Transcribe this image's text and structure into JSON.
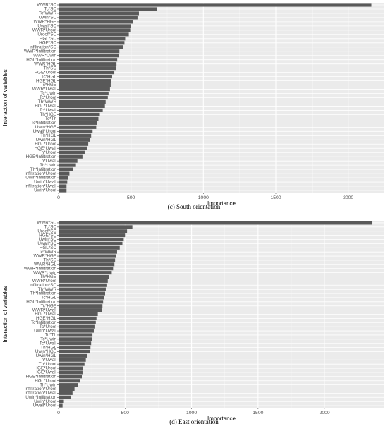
{
  "chart_data": [
    {
      "type": "bar",
      "orientation": "horizontal",
      "caption": "(c) South orientation",
      "xlabel": "Importance",
      "ylabel": "Interaction of variables",
      "xlim": [
        0,
        2250
      ],
      "xticks": [
        0,
        500,
        1000,
        1500,
        2000
      ],
      "grid": true,
      "categories": [
        "WWR*SC",
        "Tc*SC",
        "Tc*WWR",
        "Uwin*SC",
        "WWR*HGE",
        "Uwall*SC",
        "WWR*Uroof",
        "Uroof*SC",
        "HGL*SC",
        "HGE*SC",
        "Infiltration*SC",
        "WWR*Infiltration",
        "WWR*Uwin",
        "HGL*Infiltration",
        "WWR*HGL",
        "Th*SC",
        "HGE*Uroof",
        "Tc*HGL",
        "HGE*HGL",
        "Tc*HGE",
        "WWR*Uwall",
        "Tc*Uwin",
        "Tc*Uroof",
        "Th*WWR",
        "HGL*Uwall",
        "Tc*Uwall",
        "Th*HGE",
        "Tc*Th",
        "Tc*Infiltration",
        "Uwin*HGE",
        "Uwall*Uroof",
        "Th*HGL",
        "Uwin*HGL",
        "HGL*Uroof",
        "HGE*Uwall",
        "Th*Uroof",
        "HGE*Infiltration",
        "Th*Uwall",
        "Th*Uwin",
        "Th*Infiltration",
        "Infiltration*Uroof",
        "Uwin*Infiltration",
        "Uwin*Uwall",
        "Infiltration*Uwall",
        "Uwin*Uroof"
      ],
      "values": [
        2160,
        680,
        555,
        545,
        515,
        500,
        495,
        485,
        460,
        455,
        445,
        420,
        415,
        405,
        400,
        395,
        385,
        370,
        365,
        360,
        355,
        345,
        340,
        325,
        320,
        305,
        285,
        275,
        265,
        260,
        235,
        225,
        215,
        205,
        195,
        180,
        165,
        130,
        120,
        100,
        75,
        65,
        60,
        55,
        55
      ]
    },
    {
      "type": "bar",
      "orientation": "horizontal",
      "caption": "(d) East orientation",
      "xlabel": "Importance",
      "ylabel": "Interaction of variables",
      "xlim": [
        0,
        2450
      ],
      "xticks": [
        0,
        500,
        1000,
        1500,
        2000
      ],
      "grid": true,
      "categories": [
        "WWR*SC",
        "Tc*SC",
        "Uroof*SC",
        "HGE*SC",
        "Uwin*SC",
        "Uwall*SC",
        "HGL*SC",
        "Tc*WWR",
        "WWR*HGE",
        "Th*SC",
        "WWR*HGL",
        "WWR*Infiltration",
        "WWR*Uwin",
        "Th*HGE",
        "WWR*Uroof",
        "Infiltration*SC",
        "Th*WWR",
        "Th*Infiltration",
        "Tc*HGL",
        "HGL*Infiltration",
        "Tc*HGE",
        "WWR*Uwall",
        "HGL*Uwall",
        "HGE*HGL",
        "Tc*Infiltration",
        "Tc*Uroof",
        "Uwin*Uwall",
        "Tc*Th",
        "Tc*Uwin",
        "Tc*Uwall",
        "Th*HGL",
        "Uwin*HGE",
        "Uwin*HGL",
        "Th*Uwall",
        "Th*Uroof",
        "HGE*Uroof",
        "HGE*Uwall",
        "HGE*Infiltration",
        "HGL*Uroof",
        "Th*Uwin",
        "Infiltration*Uroof",
        "Infiltration*Uwall",
        "Uwin*Infiltration",
        "Uwin*Uroof",
        "Uwall*Uroof"
      ],
      "values": [
        2360,
        555,
        515,
        500,
        490,
        480,
        460,
        440,
        430,
        425,
        420,
        410,
        400,
        380,
        370,
        360,
        355,
        350,
        340,
        335,
        330,
        325,
        295,
        285,
        280,
        270,
        265,
        255,
        250,
        245,
        240,
        235,
        215,
        205,
        195,
        185,
        180,
        175,
        160,
        145,
        120,
        105,
        90,
        40,
        30
      ]
    }
  ]
}
